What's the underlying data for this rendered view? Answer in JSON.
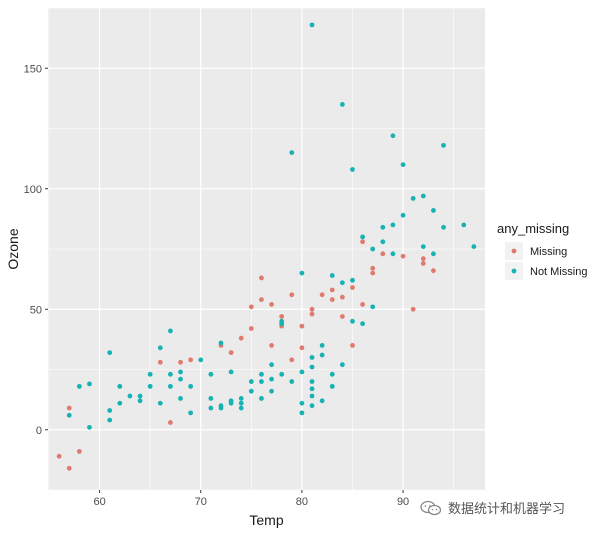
{
  "colors": {
    "panel_bg": "#ebebeb",
    "grid": "#ffffff",
    "missing": "#e07a6f",
    "not_missing": "#17b2b3"
  },
  "watermark": {
    "text": "数据统计和机器学习",
    "icon": "wechat-logo-icon"
  },
  "chart_data": {
    "type": "scatter",
    "title": "",
    "xlabel": "Temp",
    "ylabel": "Ozone",
    "xlim": [
      54.9,
      98.1
    ],
    "ylim": [
      -25,
      175
    ],
    "x_ticks": [
      60,
      70,
      80,
      90
    ],
    "y_ticks": [
      0,
      50,
      100,
      150
    ],
    "grid": true,
    "legend": {
      "title": "any_missing",
      "position": "right"
    },
    "series": [
      {
        "name": "Missing",
        "color": "#e07a6f",
        "points": [
          [
            56,
            -11
          ],
          [
            57,
            -16
          ],
          [
            57,
            9
          ],
          [
            58,
            -9
          ],
          [
            67,
            3
          ],
          [
            66,
            28
          ],
          [
            68,
            28
          ],
          [
            69,
            29
          ],
          [
            72,
            35
          ],
          [
            73,
            32
          ],
          [
            74,
            38
          ],
          [
            75,
            42
          ],
          [
            75,
            51
          ],
          [
            76,
            63
          ],
          [
            76,
            54
          ],
          [
            77,
            35
          ],
          [
            77,
            52
          ],
          [
            78,
            43
          ],
          [
            78,
            47
          ],
          [
            79,
            29
          ],
          [
            79,
            56
          ],
          [
            80,
            34
          ],
          [
            80,
            43
          ],
          [
            81,
            48
          ],
          [
            81,
            50
          ],
          [
            82,
            56
          ],
          [
            83,
            54
          ],
          [
            83,
            58
          ],
          [
            84,
            47
          ],
          [
            84,
            55
          ],
          [
            85,
            35
          ],
          [
            85,
            59
          ],
          [
            86,
            52
          ],
          [
            86,
            78
          ],
          [
            87,
            65
          ],
          [
            87,
            67
          ],
          [
            88,
            73
          ],
          [
            90,
            72
          ],
          [
            91,
            50
          ],
          [
            92,
            69
          ],
          [
            92,
            71
          ],
          [
            93,
            66
          ]
        ]
      },
      {
        "name": "Not Missing",
        "color": "#17b2b3",
        "points": [
          [
            57,
            6
          ],
          [
            58,
            18
          ],
          [
            59,
            1
          ],
          [
            59,
            19
          ],
          [
            61,
            4
          ],
          [
            61,
            8
          ],
          [
            61,
            32
          ],
          [
            62,
            11
          ],
          [
            62,
            18
          ],
          [
            63,
            14
          ],
          [
            64,
            14
          ],
          [
            64,
            12
          ],
          [
            65,
            18
          ],
          [
            65,
            23
          ],
          [
            66,
            11
          ],
          [
            66,
            34
          ],
          [
            67,
            18
          ],
          [
            67,
            23
          ],
          [
            67,
            41
          ],
          [
            68,
            13
          ],
          [
            68,
            21
          ],
          [
            68,
            24
          ],
          [
            69,
            7
          ],
          [
            69,
            18
          ],
          [
            70,
            29
          ],
          [
            71,
            13
          ],
          [
            71,
            9
          ],
          [
            71,
            23
          ],
          [
            72,
            9
          ],
          [
            72,
            10
          ],
          [
            72,
            36
          ],
          [
            73,
            11
          ],
          [
            73,
            12
          ],
          [
            73,
            24
          ],
          [
            74,
            9
          ],
          [
            74,
            11
          ],
          [
            74,
            13
          ],
          [
            75,
            16
          ],
          [
            75,
            20
          ],
          [
            76,
            13
          ],
          [
            76,
            20
          ],
          [
            76,
            23
          ],
          [
            77,
            16
          ],
          [
            77,
            21
          ],
          [
            77,
            27
          ],
          [
            78,
            23
          ],
          [
            78,
            44
          ],
          [
            78,
            45
          ],
          [
            79,
            20
          ],
          [
            79,
            115
          ],
          [
            80,
            7
          ],
          [
            80,
            11
          ],
          [
            80,
            24
          ],
          [
            80,
            65
          ],
          [
            81,
            10
          ],
          [
            81,
            14
          ],
          [
            81,
            17
          ],
          [
            81,
            20
          ],
          [
            81,
            26
          ],
          [
            81,
            30
          ],
          [
            81,
            168
          ],
          [
            82,
            12
          ],
          [
            82,
            31
          ],
          [
            82,
            35
          ],
          [
            83,
            18
          ],
          [
            83,
            23
          ],
          [
            83,
            64
          ],
          [
            84,
            27
          ],
          [
            84,
            61
          ],
          [
            84,
            135
          ],
          [
            85,
            45
          ],
          [
            85,
            62
          ],
          [
            85,
            108
          ],
          [
            86,
            44
          ],
          [
            86,
            80
          ],
          [
            87,
            51
          ],
          [
            87,
            75
          ],
          [
            88,
            78
          ],
          [
            88,
            84
          ],
          [
            89,
            73
          ],
          [
            89,
            85
          ],
          [
            89,
            122
          ],
          [
            90,
            89
          ],
          [
            90,
            110
          ],
          [
            91,
            96
          ],
          [
            92,
            76
          ],
          [
            92,
            97
          ],
          [
            93,
            73
          ],
          [
            93,
            91
          ],
          [
            94,
            84
          ],
          [
            94,
            118
          ],
          [
            96,
            85
          ],
          [
            97,
            76
          ]
        ]
      }
    ]
  }
}
